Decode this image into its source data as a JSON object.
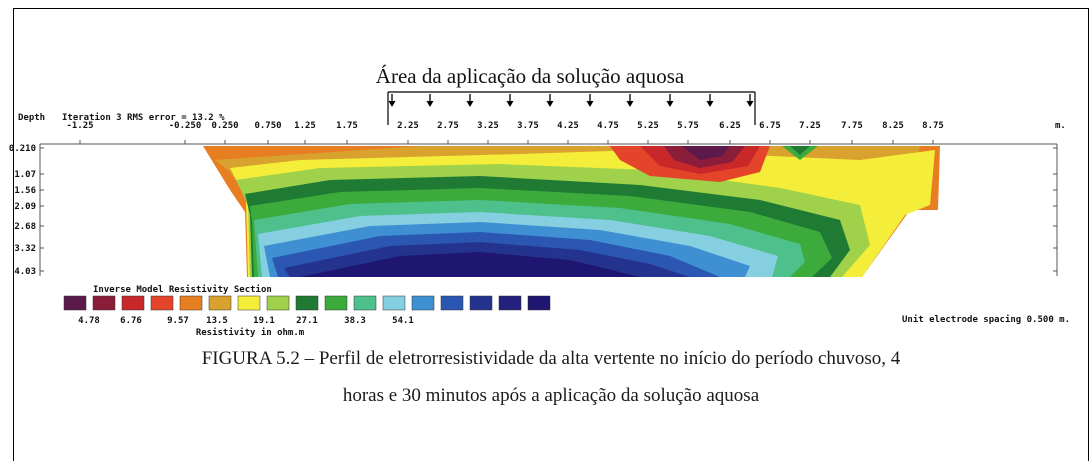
{
  "application_area_label": "Área da aplicação da solução aquosa",
  "header": {
    "depth_label": "Depth",
    "iteration_text": "Iteration 3 RMS error = 13.2 %",
    "units_label": "m."
  },
  "x_ticks": [
    "-1.25",
    "-0.250",
    "0.250",
    "0.750",
    "1.25",
    "1.75",
    "2.25",
    "2.75",
    "3.25",
    "3.75",
    "4.25",
    "4.75",
    "5.25",
    "5.75",
    "6.25",
    "6.75",
    "7.25",
    "7.75",
    "8.25",
    "8.75"
  ],
  "depth_ticks": [
    "0.210",
    "1.07",
    "1.56",
    "2.09",
    "2.68",
    "3.32",
    "4.03"
  ],
  "legend": {
    "title": "Inverse Model Resistivity Section",
    "colors": [
      "#5b1a4a",
      "#8a1d3a",
      "#c8282a",
      "#e3442a",
      "#e87e22",
      "#d9a12d",
      "#f4ee3a",
      "#9fd14a",
      "#1f7a34",
      "#3cab3c",
      "#4ec08c",
      "#86cfe0",
      "#3f8fd3",
      "#2b56b2",
      "#24348e",
      "#24207e",
      "#1e1670"
    ],
    "values": [
      "4.78",
      "6.76",
      "9.57",
      "13.5",
      "19.1",
      "27.1",
      "38.3",
      "54.1"
    ],
    "unit_label": "Resistivity in ohm.m"
  },
  "electrode_spacing": "Unit electrode spacing 0.500 m.",
  "caption": {
    "line1": "FIGURA 5.2 – Perfil de eletrorresistividade da alta vertente no início do período chuvoso, 4",
    "line2": "horas e 30 minutos após a aplicação da solução aquosa"
  }
}
